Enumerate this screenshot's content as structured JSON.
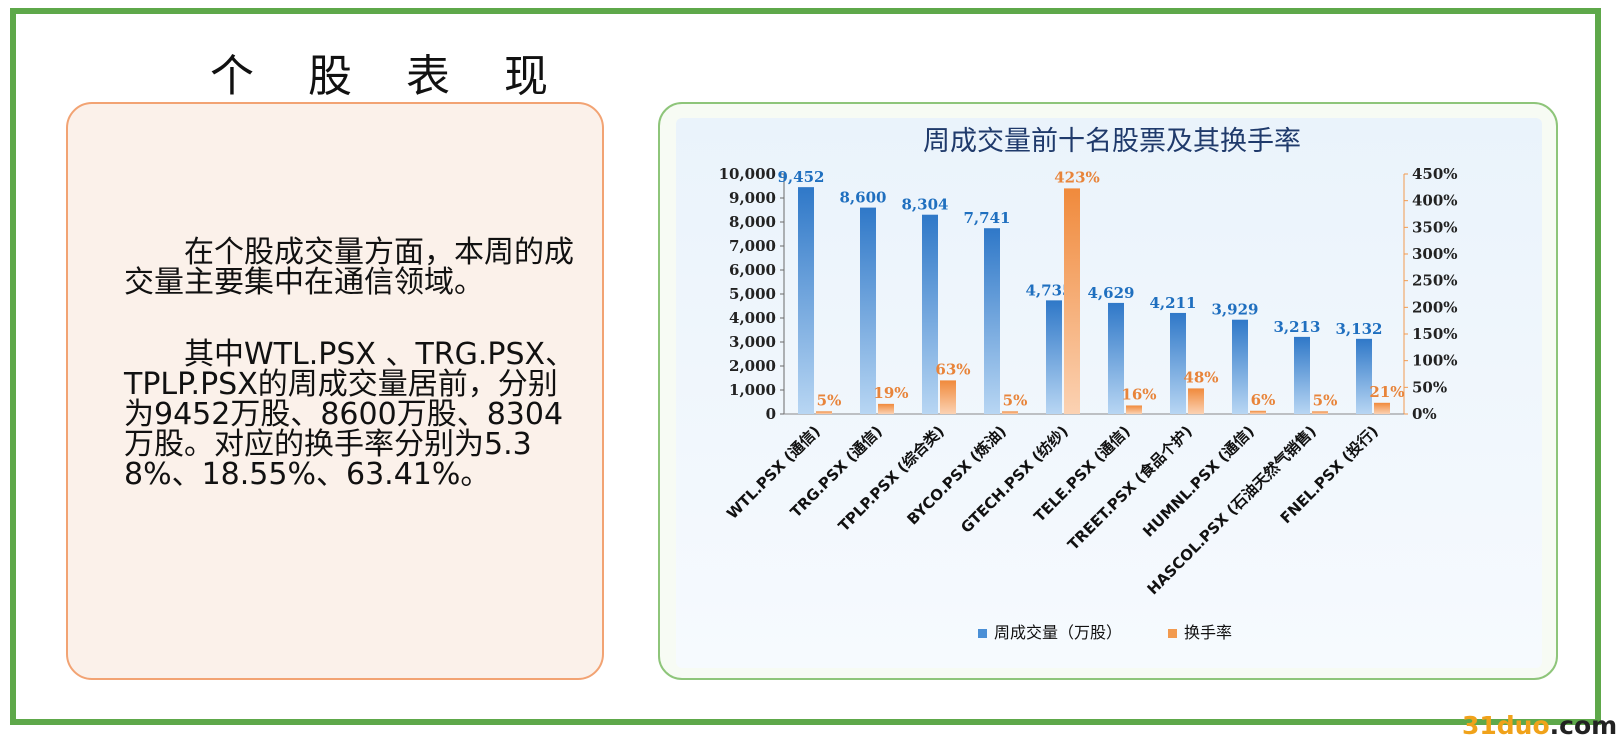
{
  "slide_title": "个 股 表 现",
  "text_card": {
    "paragraph_1": "在个股成交量方面，本周的成交量主要集中在通信领域。",
    "paragraph_2": "其中WTL.PSX 、TRG.PSX、TPLP.PSX的周成交量居前，分别为9452万股、8600万股、8304万股。对应的换手率分别为5.38%、18.55%、63.41%。"
  },
  "chart_data": {
    "type": "bar",
    "title": "周成交量前十名股票及其换手率",
    "categories": [
      "WTL.PSX (通信)",
      "TRG.PSX (通信)",
      "TPLP.PSX (综合类)",
      "BYCO.PSX (炼油)",
      "GTECH.PSX (纺纱)",
      "TELE.PSX (通信)",
      "TREET.PSX (食品个护)",
      "HUMNL.PSX (通信)",
      "HASCOL.PSX (石油天然气销售)",
      "FNEL.PSX (投行)"
    ],
    "series": [
      {
        "name": "周成交量（万股）",
        "axis": "left",
        "color": "#4a8fd6",
        "values": [
          9452,
          8600,
          8304,
          7741,
          4735,
          4629,
          4211,
          3929,
          3213,
          3132
        ],
        "labels": [
          "9,452",
          "8,600",
          "8,304",
          "7,741",
          "4,735",
          "4,629",
          "4,211",
          "3,929",
          "3,213",
          "3,132"
        ]
      },
      {
        "name": "换手率",
        "axis": "right",
        "color": "#f29a4f",
        "values": [
          5,
          19,
          63,
          5,
          423,
          16,
          48,
          6,
          5,
          21
        ],
        "labels": [
          "5%",
          "19%",
          "63%",
          "5%",
          "423%",
          "16%",
          "48%",
          "6%",
          "5%",
          "21%"
        ]
      }
    ],
    "y_left": {
      "min": 0,
      "max": 10000,
      "ticks": [
        "0",
        "1,000",
        "2,000",
        "3,000",
        "4,000",
        "5,000",
        "6,000",
        "7,000",
        "8,000",
        "9,000",
        "10,000"
      ]
    },
    "y_right": {
      "min": 0,
      "max": 450,
      "ticks": [
        "0%",
        "50%",
        "100%",
        "150%",
        "200%",
        "250%",
        "300%",
        "350%",
        "400%",
        "450%"
      ]
    },
    "legend_position": "bottom",
    "label_colors": {
      "left": "#1f6fbf",
      "right": "#e8843a"
    }
  },
  "watermark": {
    "number": "31duo",
    "domain": ".com"
  }
}
